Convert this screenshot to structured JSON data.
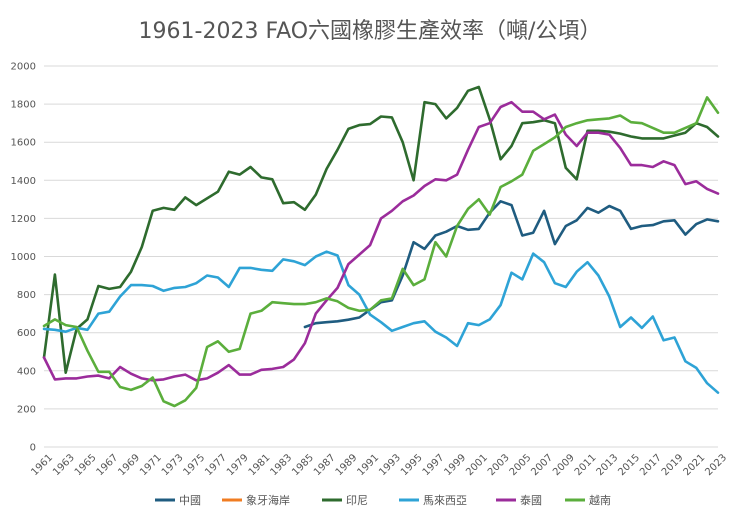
{
  "chart_data": {
    "type": "line",
    "title": "1961-2023 FAO六國橡膠生產效率（噸/公頃）",
    "xlabel": "",
    "ylabel": "",
    "ylim": [
      0,
      2000
    ],
    "yticks": [
      0,
      200,
      400,
      600,
      800,
      1000,
      1200,
      1400,
      1600,
      1800,
      2000
    ],
    "xticks": [
      "1961",
      "1963",
      "1965",
      "1967",
      "1969",
      "1971",
      "1973",
      "1975",
      "1977",
      "1979",
      "1981",
      "1983",
      "1985",
      "1987",
      "1989",
      "1991",
      "1993",
      "1995",
      "1997",
      "1999",
      "2001",
      "2003",
      "2005",
      "2007",
      "2009",
      "2011",
      "2013",
      "2015",
      "2017",
      "2019",
      "2021",
      "2023"
    ],
    "grid": "horizontal",
    "legend_position": "bottom",
    "x": [
      1961,
      1962,
      1963,
      1964,
      1965,
      1966,
      1967,
      1968,
      1969,
      1970,
      1971,
      1972,
      1973,
      1974,
      1975,
      1976,
      1977,
      1978,
      1979,
      1980,
      1981,
      1982,
      1983,
      1984,
      1985,
      1986,
      1987,
      1988,
      1989,
      1990,
      1991,
      1992,
      1993,
      1994,
      1995,
      1996,
      1997,
      1998,
      1999,
      2000,
      2001,
      2002,
      2003,
      2004,
      2005,
      2006,
      2007,
      2008,
      2009,
      2010,
      2011,
      2012,
      2013,
      2014,
      2015,
      2016,
      2017,
      2018,
      2019,
      2020,
      2021,
      2022,
      2023
    ],
    "series": [
      {
        "name": "中國",
        "color": "#1F5C80",
        "values": [
          null,
          null,
          null,
          null,
          null,
          null,
          null,
          null,
          null,
          null,
          null,
          null,
          null,
          null,
          null,
          null,
          null,
          null,
          null,
          null,
          null,
          null,
          null,
          null,
          630,
          650,
          655,
          660,
          668,
          680,
          720,
          760,
          770,
          900,
          1075,
          1040,
          1110,
          1130,
          1160,
          1140,
          1145,
          1230,
          1290,
          1270,
          1110,
          1125,
          1240,
          1065,
          1160,
          1190,
          1255,
          1230,
          1265,
          1240,
          1145,
          1160,
          1165,
          1185,
          1190,
          1115,
          1170,
          1195,
          1185
        ]
      },
      {
        "name": "象牙海岸",
        "color": "#F07C22",
        "values": [
          null,
          null,
          null,
          null,
          null,
          null,
          null,
          null,
          null,
          null,
          null,
          null,
          null,
          null,
          null,
          null,
          null,
          null,
          null,
          null,
          null,
          null,
          null,
          null,
          null,
          null,
          null,
          null,
          null,
          null,
          null,
          null,
          null,
          null,
          null,
          null,
          null,
          null,
          null,
          null,
          null,
          null,
          null,
          null,
          null,
          null,
          null,
          null,
          null,
          null,
          null,
          null,
          null,
          null,
          null,
          null,
          null,
          null,
          null,
          null,
          null,
          null,
          null
        ]
      },
      {
        "name": "印尼",
        "color": "#2E6B2E",
        "values": [
          470,
          905,
          390,
          620,
          670,
          845,
          830,
          840,
          920,
          1050,
          1240,
          1255,
          1245,
          1310,
          1270,
          1305,
          1340,
          1445,
          1430,
          1470,
          1415,
          1405,
          1280,
          1285,
          1245,
          1325,
          1460,
          1560,
          1670,
          1690,
          1695,
          1735,
          1730,
          1600,
          1400,
          1810,
          1800,
          1725,
          1780,
          1870,
          1890,
          1720,
          1510,
          1580,
          1700,
          1705,
          1715,
          1700,
          1465,
          1405,
          1660,
          1660,
          1655,
          1645,
          1630,
          1620,
          1620,
          1620,
          1635,
          1650,
          1700,
          1680,
          1630
        ]
      },
      {
        "name": "馬來西亞",
        "color": "#2EA3D6",
        "values": [
          620,
          615,
          605,
          625,
          615,
          700,
          710,
          790,
          850,
          850,
          845,
          820,
          835,
          840,
          860,
          900,
          890,
          840,
          940,
          940,
          930,
          925,
          985,
          975,
          955,
          1000,
          1025,
          1005,
          850,
          800,
          695,
          655,
          610,
          630,
          650,
          660,
          605,
          575,
          530,
          650,
          640,
          670,
          745,
          915,
          880,
          1015,
          970,
          860,
          840,
          920,
          970,
          900,
          790,
          630,
          680,
          625,
          685,
          560,
          575,
          450,
          415,
          335,
          285
        ]
      },
      {
        "name": "泰國",
        "color": "#9B2C9B",
        "values": [
          470,
          355,
          360,
          360,
          370,
          375,
          360,
          420,
          385,
          360,
          350,
          355,
          370,
          380,
          350,
          360,
          390,
          430,
          380,
          380,
          405,
          410,
          420,
          460,
          545,
          700,
          770,
          835,
          960,
          1010,
          1060,
          1200,
          1240,
          1290,
          1320,
          1370,
          1405,
          1400,
          1430,
          1560,
          1680,
          1700,
          1785,
          1810,
          1760,
          1760,
          1720,
          1745,
          1640,
          1580,
          1650,
          1650,
          1640,
          1570,
          1480,
          1480,
          1470,
          1500,
          1480,
          1380,
          1395,
          1355,
          1330
        ]
      },
      {
        "name": "越南",
        "color": "#5BAE3C",
        "values": [
          635,
          670,
          640,
          630,
          505,
          395,
          395,
          315,
          300,
          320,
          365,
          240,
          215,
          245,
          310,
          525,
          555,
          500,
          515,
          700,
          715,
          760,
          755,
          750,
          750,
          760,
          780,
          765,
          730,
          715,
          720,
          770,
          780,
          935,
          850,
          880,
          1075,
          1000,
          1160,
          1250,
          1300,
          1220,
          1365,
          1395,
          1430,
          1555,
          1590,
          1625,
          1680,
          1700,
          1715,
          1720,
          1725,
          1740,
          1705,
          1700,
          1675,
          1650,
          1650,
          1675,
          1700,
          1835,
          1755
        ]
      }
    ]
  }
}
